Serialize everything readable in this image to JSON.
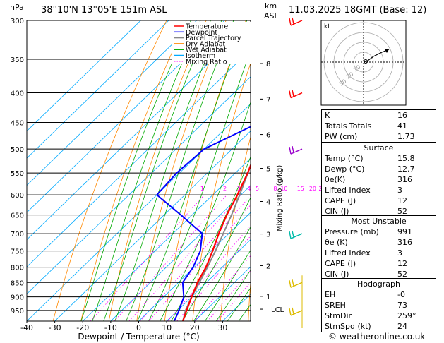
{
  "header": {
    "pressure_unit": "hPa",
    "location": "38°10'N  13°05'E  151m  ASL",
    "km_label": "km",
    "asl_label": "ASL",
    "datetime": "11.03.2025  18GMT  (Base: 12)"
  },
  "chart_data": {
    "type": "skew-t",
    "xlabel": "Dewpoint / Temperature (°C)",
    "ylabel_right": "Mixing Ratio (g/kg)",
    "xlim": [
      -40,
      40
    ],
    "x_ticks": [
      -40,
      -30,
      -20,
      -10,
      0,
      10,
      20,
      30
    ],
    "pressure_levels": [
      300,
      350,
      400,
      450,
      500,
      550,
      600,
      650,
      700,
      750,
      800,
      850,
      900,
      950
    ],
    "plim": [
      300,
      991
    ],
    "km_ticks": [
      {
        "label": "8",
        "p": 356
      },
      {
        "label": "7",
        "p": 410
      },
      {
        "label": "6",
        "p": 472
      },
      {
        "label": "5",
        "p": 540
      },
      {
        "label": "4",
        "p": 616
      },
      {
        "label": "3",
        "p": 701
      },
      {
        "label": "2",
        "p": 795
      },
      {
        "label": "1",
        "p": 898
      },
      {
        "label": "LCL",
        "p": 945
      }
    ],
    "mixing_ratio_labels": [
      "1",
      "2",
      "3",
      "4",
      "5",
      "8",
      "10",
      "15",
      "20",
      "25"
    ],
    "legend": [
      "Temperature",
      "Dewpoint",
      "Parcel Trajectory",
      "Dry Adiabat",
      "Wet Adiabat",
      "Isotherm",
      "Mixing Ratio"
    ],
    "legend_colors": [
      "#ff0000",
      "#0000ff",
      "#888888",
      "#ff8800",
      "#00aa00",
      "#00aaff",
      "#ff00ff"
    ],
    "temperature": {
      "p": [
        991,
        950,
        900,
        850,
        800,
        750,
        700,
        650,
        600,
        550,
        500,
        450,
        400,
        350,
        300
      ],
      "t": [
        15.8,
        13.2,
        10.0,
        6.8,
        4.2,
        0.6,
        -3.6,
        -7.6,
        -11.2,
        -15.6,
        -21.0,
        -27.0,
        -34.4,
        -42.2,
        -50.8
      ]
    },
    "dewpoint": {
      "p": [
        991,
        950,
        900,
        850,
        800,
        750,
        700,
        650,
        600,
        550,
        500,
        450,
        400,
        350,
        300
      ],
      "t": [
        12.7,
        10.5,
        7.2,
        1.5,
        -0.4,
        -3.8,
        -9.5,
        -24.0,
        -40.0,
        -41.0,
        -40.0,
        -30.0,
        -38.0,
        -45.0,
        -54.0
      ]
    },
    "parcel": {
      "p": [
        991,
        950,
        900,
        850,
        800,
        750,
        700,
        650,
        600,
        550,
        500,
        450,
        400,
        350,
        300
      ],
      "t": [
        15.8,
        12.8,
        10.0,
        7.5,
        4.7,
        1.6,
        -2.0,
        -5.9,
        -10.4,
        -15.5,
        -21.5,
        -28.3,
        -36.0,
        -44.6,
        -53.8
      ]
    },
    "wind_barbs": [
      {
        "p": 300,
        "color": "#ff0000"
      },
      {
        "p": 400,
        "color": "#ff0000"
      },
      {
        "p": 500,
        "color": "#9900cc"
      },
      {
        "p": 700,
        "color": "#00bbaa"
      },
      {
        "p": 850,
        "color": "#ddbb00"
      },
      {
        "p": 950,
        "color": "#ddbb00"
      }
    ]
  },
  "hodograph": {
    "label": "kt",
    "rings": [
      "10",
      "20",
      "30"
    ]
  },
  "indices": {
    "rows": [
      {
        "k": "K",
        "v": "16"
      },
      {
        "k": "Totals Totals",
        "v": "41"
      },
      {
        "k": "PW (cm)",
        "v": "1.73"
      }
    ]
  },
  "surface": {
    "title": "Surface",
    "rows": [
      {
        "k": "Temp (°C)",
        "v": "15.8"
      },
      {
        "k": "Dewp (°C)",
        "v": "12.7"
      },
      {
        "k": "θe(K)",
        "v": "316"
      },
      {
        "k": "Lifted Index",
        "v": "3"
      },
      {
        "k": "CAPE (J)",
        "v": "12"
      },
      {
        "k": "CIN (J)",
        "v": "52"
      }
    ]
  },
  "unstable": {
    "title": "Most Unstable",
    "rows": [
      {
        "k": "Pressure (mb)",
        "v": "991"
      },
      {
        "k": "θe (K)",
        "v": "316"
      },
      {
        "k": "Lifted Index",
        "v": "3"
      },
      {
        "k": "CAPE (J)",
        "v": "12"
      },
      {
        "k": "CIN (J)",
        "v": "52"
      }
    ]
  },
  "hodo": {
    "title": "Hodograph",
    "rows": [
      {
        "k": "EH",
        "v": "-0"
      },
      {
        "k": "SREH",
        "v": "73"
      },
      {
        "k": "StmDir",
        "v": "259°"
      },
      {
        "k": "StmSpd (kt)",
        "v": "24"
      }
    ]
  },
  "footer": "© weatheronline.co.uk"
}
